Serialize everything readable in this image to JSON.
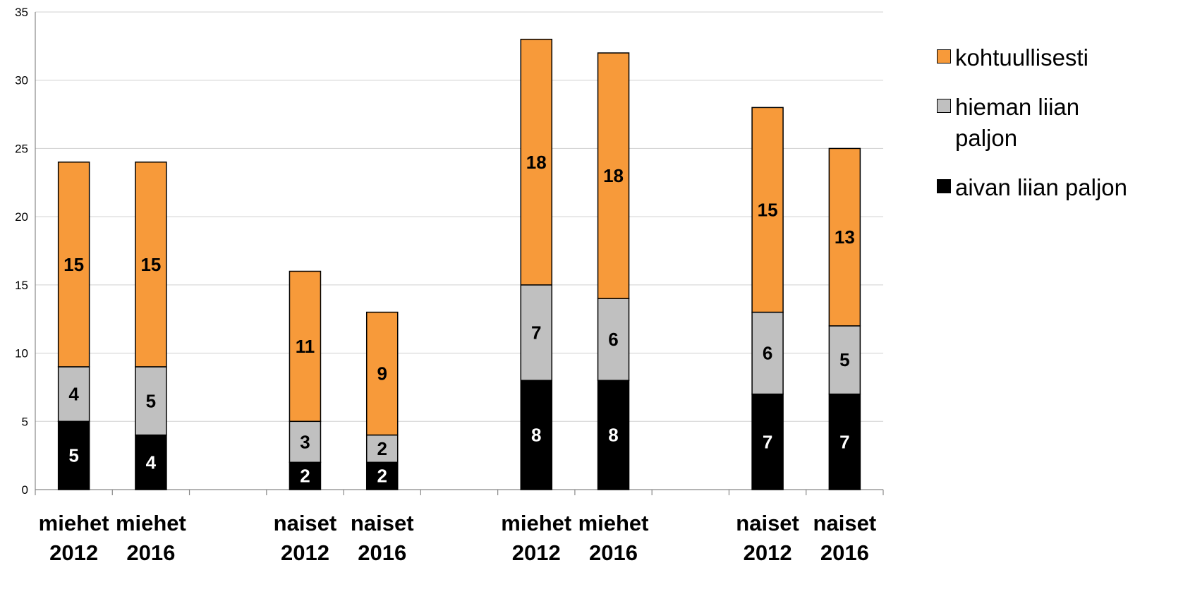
{
  "chart_data": {
    "type": "bar",
    "stacked": true,
    "categories": [
      "miehet 2012",
      "miehet 2016",
      "naiset 2012",
      "naiset 2016",
      "miehet 2012",
      "miehet 2016",
      "naiset 2012",
      "naiset 2016"
    ],
    "category_lines": [
      [
        "miehet",
        "2012"
      ],
      [
        "miehet",
        "2016"
      ],
      [
        "naiset",
        "2012"
      ],
      [
        "naiset",
        "2016"
      ],
      [
        "miehet",
        "2012"
      ],
      [
        "miehet",
        "2016"
      ],
      [
        "naiset",
        "2012"
      ],
      [
        "naiset",
        "2016"
      ]
    ],
    "slots": [
      0,
      1,
      3,
      4,
      6,
      7,
      9,
      10
    ],
    "slot_count": 11,
    "series": [
      {
        "name": "aivan liian paljon",
        "color": "#000000",
        "label_color": "#ffffff",
        "values": [
          5,
          4,
          2,
          2,
          8,
          8,
          7,
          7
        ]
      },
      {
        "name": "hieman liian paljon",
        "color": "#c0c0c0",
        "label_color": "#000000",
        "values": [
          4,
          5,
          3,
          2,
          7,
          6,
          6,
          5
        ]
      },
      {
        "name": "kohtuullisesti",
        "color": "#f79a3a",
        "label_color": "#000000",
        "values": [
          15,
          15,
          11,
          9,
          18,
          18,
          15,
          13
        ]
      }
    ],
    "legend_order": [
      "kohtuullisesti",
      "hieman liian paljon",
      "aivan liian paljon"
    ],
    "legend_position": "right",
    "ylim": [
      0,
      35
    ],
    "yticks": [
      0,
      5,
      10,
      15,
      20,
      25,
      30,
      35
    ],
    "grid": true,
    "title": "",
    "xlabel": "",
    "ylabel": ""
  }
}
